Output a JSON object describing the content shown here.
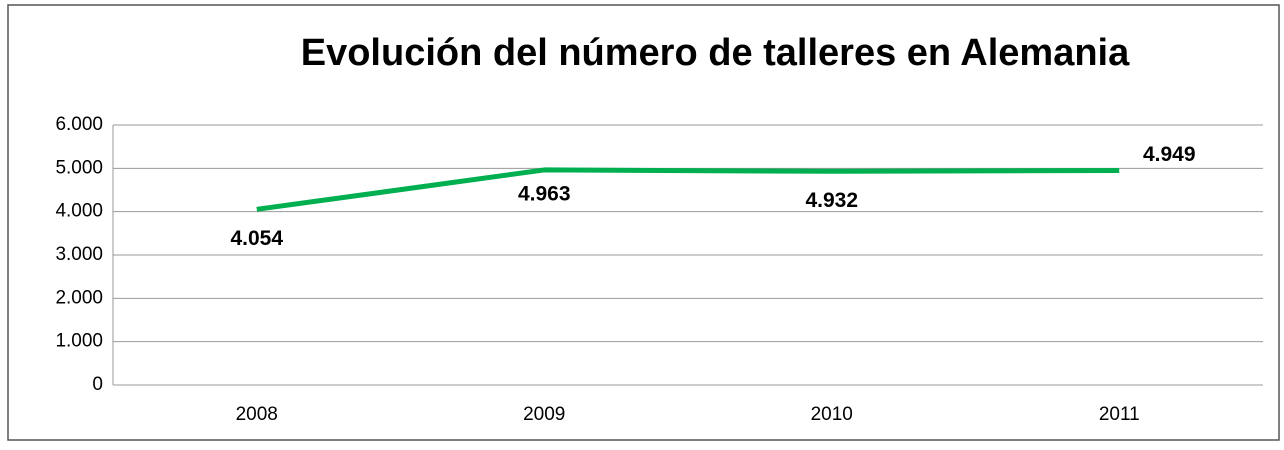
{
  "chart_data": {
    "type": "line",
    "title": "Evolución del número de talleres en Alemania",
    "categories": [
      "2008",
      "2009",
      "2010",
      "2011"
    ],
    "values": [
      4054,
      4963,
      4932,
      4949
    ],
    "value_labels": [
      "4.054",
      "4.963",
      "4.932",
      "4.949"
    ],
    "color": "#00b050",
    "ylim": [
      0,
      6000
    ],
    "yticks": [
      0,
      {
        "value": 1000,
        "label": "1.000"
      },
      {
        "value": 2000,
        "label": "2.000"
      },
      {
        "value": 3000,
        "label": "3.000"
      },
      {
        "value": 4000,
        "label": "4.000"
      },
      {
        "value": 5000,
        "label": "5.000"
      },
      {
        "value": 6000,
        "label": "6.000"
      }
    ],
    "grid": true
  }
}
